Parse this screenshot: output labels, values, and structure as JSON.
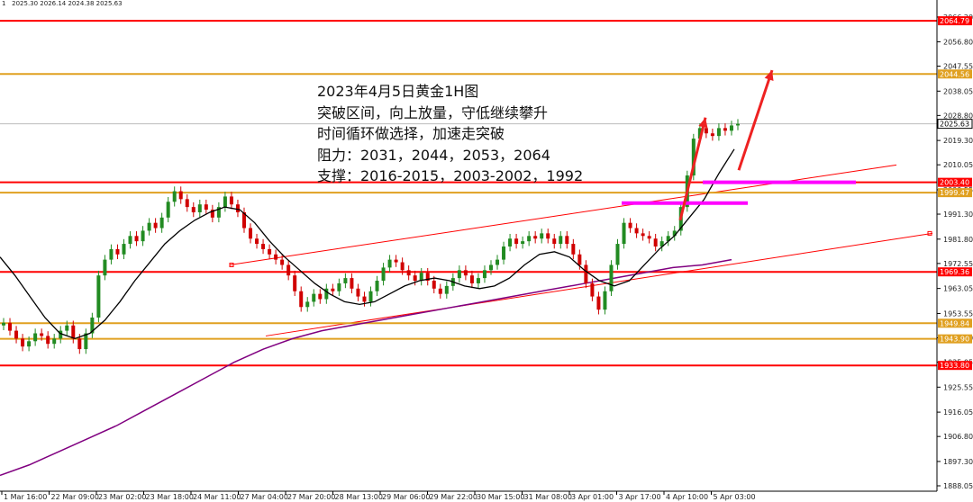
{
  "header": {
    "ohlc": "1   2025.30 2026.14 2024.38 2025.63"
  },
  "annotation": {
    "lines": [
      "2023年4月5日黄金1H图",
      "突破区间，向上放量，守低继续攀升",
      "时间循环做选择，加速走突破",
      "阻力：2031，2044，2053，2064",
      "支撑：2016-2015，2003-2002，1992"
    ]
  },
  "colors": {
    "red_level": "#ff0000",
    "orange_level": "#e0a020",
    "candle_up": "#228b22",
    "candle_down": "#d00000",
    "ma_short": "#000000",
    "ma_long": "#800080",
    "channel": "#ff0000",
    "highlight": "#ff00ff",
    "arrow": "#ee2222",
    "last_price_bg": "#ffffff"
  },
  "chart_data": {
    "type": "candlestick",
    "symbol_timeframe": "1H",
    "ylim": [
      1886.0,
      2072.0
    ],
    "y_ticks": [
      2066.2,
      2056.8,
      2047.55,
      2038.05,
      2028.8,
      2019.3,
      2010.05,
      2000.55,
      1991.3,
      1981.8,
      1972.55,
      1963.05,
      1953.55,
      1944.3,
      1935.05,
      1925.55,
      1916.05,
      1906.8,
      1897.3,
      1888.05
    ],
    "x_ticks": [
      "1 Mar 16:00",
      "22 Mar 09:00",
      "23 Mar 02:00",
      "23 Mar 18:00",
      "24 Mar 11:00",
      "27 Mar 04:00",
      "27 Mar 20:00",
      "28 Mar 13:00",
      "29 Mar 06:00",
      "29 Mar 22:00",
      "30 Mar 15:00",
      "31 Mar 08:00",
      "3 Apr 01:00",
      "3 Apr 17:00",
      "4 Apr 10:00",
      "5 Apr 03:00"
    ],
    "horizontal_levels": [
      {
        "value": 2064.79,
        "label": "2064.79",
        "color": "red"
      },
      {
        "value": 2044.56,
        "label": "2044.56",
        "color": "orange"
      },
      {
        "value": 2003.4,
        "label": "2003.40",
        "color": "red"
      },
      {
        "value": 1999.47,
        "label": "1999.47",
        "color": "orange"
      },
      {
        "value": 1969.36,
        "label": "1969.36",
        "color": "red"
      },
      {
        "value": 1949.84,
        "label": "1949.84",
        "color": "orange"
      },
      {
        "value": 1943.9,
        "label": "1943.90",
        "color": "orange"
      },
      {
        "value": 1933.8,
        "label": "1933.80",
        "color": "red"
      }
    ],
    "last_price": 2025.63,
    "candles_close": [
      1950,
      1947,
      1944,
      1941,
      1943,
      1946,
      1945,
      1942,
      1944,
      1947,
      1949,
      1944,
      1940,
      1946,
      1952,
      1968,
      1974,
      1978,
      1976,
      1980,
      1983,
      1981,
      1985,
      1988,
      1986,
      1990,
      1996,
      2000,
      1997,
      1994,
      1992,
      1995,
      1993,
      1990,
      1994,
      1998,
      1995,
      1992,
      1986,
      1982,
      1980,
      1978,
      1976,
      1974,
      1972,
      1968,
      1962,
      1956,
      1958,
      1961,
      1959,
      1963,
      1962,
      1965,
      1967,
      1963,
      1960,
      1958,
      1962,
      1966,
      1971,
      1974,
      1973,
      1970,
      1968,
      1966,
      1969,
      1966,
      1963,
      1961,
      1964,
      1967,
      1970,
      1968,
      1965,
      1967,
      1970,
      1972,
      1974,
      1979,
      1982,
      1980,
      1981,
      1983,
      1982,
      1984,
      1982,
      1980,
      1983,
      1980,
      1976,
      1972,
      1965,
      1960,
      1955,
      1962,
      1972,
      1980,
      1988,
      1986,
      1984,
      1983,
      1982,
      1979,
      1981,
      1983,
      1985,
      1994,
      2006,
      2020,
      2024,
      2022,
      2021,
      2024,
      2023,
      2025,
      2025.63
    ],
    "ma_short": [
      1975,
      1968,
      1960,
      1952,
      1946,
      1944,
      1946,
      1951,
      1958,
      1966,
      1973,
      1980,
      1985,
      1989,
      1992,
      1994,
      1993,
      1988,
      1981,
      1975,
      1970,
      1965,
      1961,
      1958,
      1957,
      1958,
      1961,
      1964,
      1966,
      1967,
      1966,
      1964,
      1963,
      1964,
      1967,
      1972,
      1976,
      1977,
      1975,
      1970,
      1966,
      1964,
      1966,
      1972,
      1978,
      1983,
      1990,
      1997,
      2007,
      2016
    ],
    "ma_long": [
      1892,
      1896,
      1901,
      1906,
      1911,
      1917,
      1923,
      1929,
      1935,
      1940,
      1944,
      1947,
      1949,
      1951,
      1953,
      1955,
      1957,
      1959,
      1961,
      1963,
      1965,
      1967,
      1969,
      1971,
      1972,
      1974
    ]
  }
}
